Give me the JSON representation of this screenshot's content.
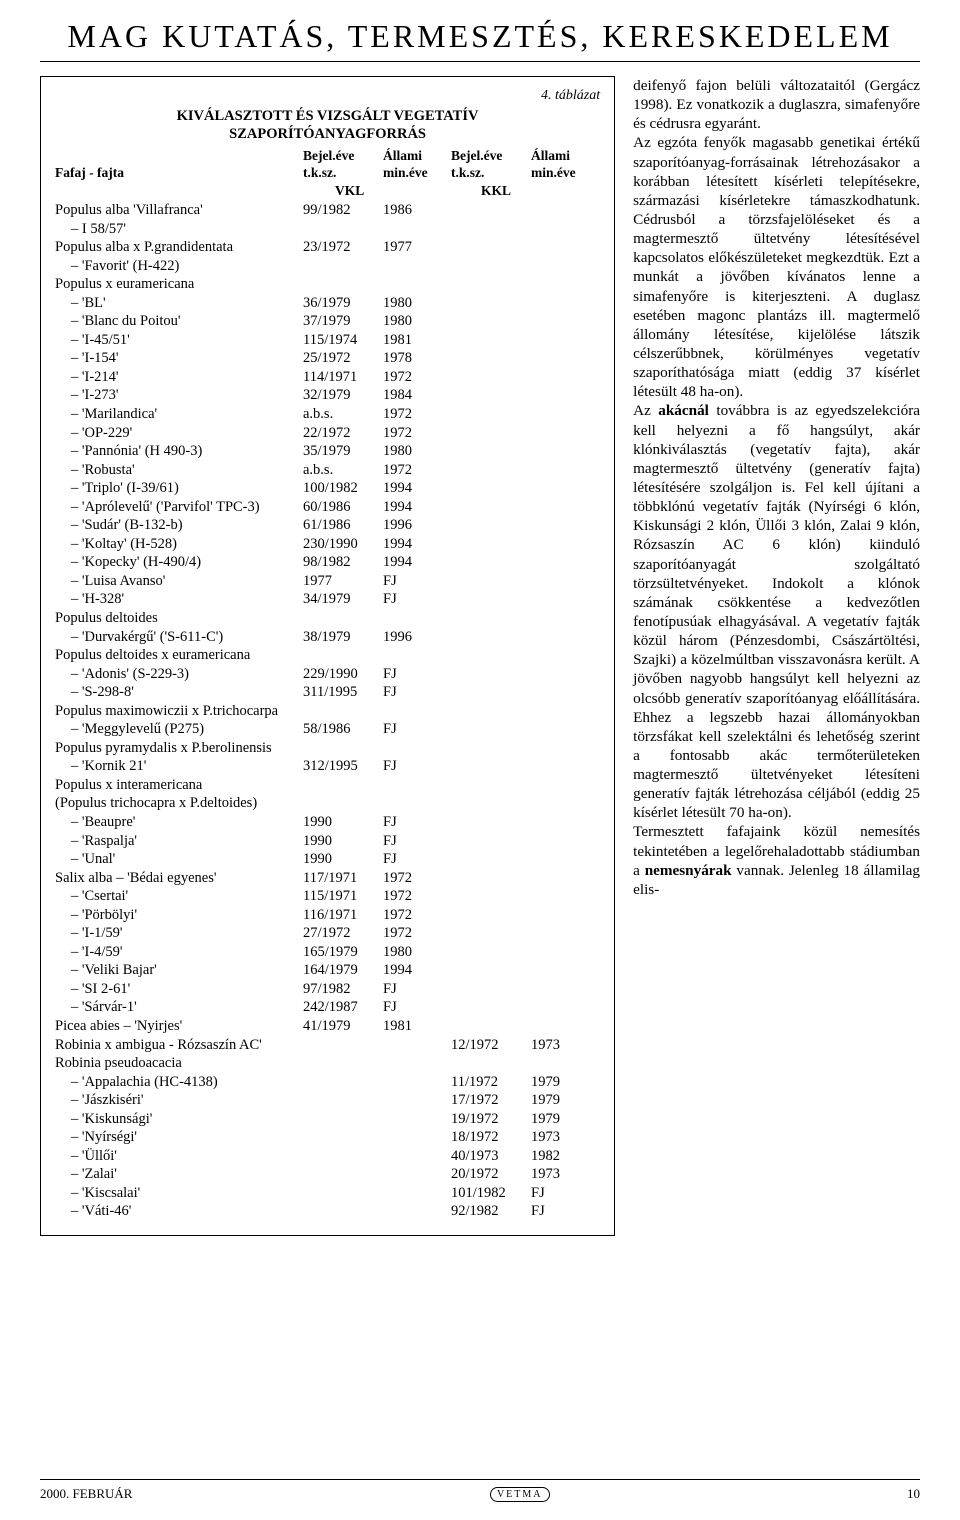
{
  "page_title": "MAG KUTATÁS, TERMESZTÉS, KERESKEDELEM",
  "table": {
    "tag": "4. táblázat",
    "title_l1": "KIVÁLASZTOTT ÉS VIZSGÁLT VEGETATÍV",
    "title_l2": "SZAPORÍTÓANYAGFORRÁS",
    "hdr_fajta": "Fafaj - fajta",
    "hdr_bejel": "Bejel.éve",
    "hdr_tksz": "t.k.sz.",
    "hdr_allami": "Állami",
    "hdr_mineve": "min.éve",
    "hdr_vkl": "VKL",
    "hdr_kkl": "KKL",
    "rows": [
      {
        "n": "Populus alba 'Villafranca'",
        "a": "99/1982",
        "b": "1986",
        "c": "",
        "d": "",
        "p": 0
      },
      {
        "n": "I 58/57'",
        "a": "",
        "b": "",
        "c": "",
        "d": "",
        "p": 1
      },
      {
        "n": "Populus alba x P.grandidentata",
        "a": "23/1972",
        "b": "1977",
        "c": "",
        "d": "",
        "p": 0
      },
      {
        "n": "'Favorit' (H-422)",
        "a": "",
        "b": "",
        "c": "",
        "d": "",
        "p": 1
      },
      {
        "n": "Populus x euramericana",
        "a": "",
        "b": "",
        "c": "",
        "d": "",
        "p": 0
      },
      {
        "n": "'BL'",
        "a": "36/1979",
        "b": "1980",
        "c": "",
        "d": "",
        "p": 1
      },
      {
        "n": "'Blanc du Poitou'",
        "a": "37/1979",
        "b": "1980",
        "c": "",
        "d": "",
        "p": 1
      },
      {
        "n": "'I-45/51'",
        "a": "115/1974",
        "b": "1981",
        "c": "",
        "d": "",
        "p": 1
      },
      {
        "n": "'I-154'",
        "a": "25/1972",
        "b": "1978",
        "c": "",
        "d": "",
        "p": 1
      },
      {
        "n": "'I-214'",
        "a": "114/1971",
        "b": "1972",
        "c": "",
        "d": "",
        "p": 1
      },
      {
        "n": "'I-273'",
        "a": "32/1979",
        "b": "1984",
        "c": "",
        "d": "",
        "p": 1
      },
      {
        "n": "'Marilandica'",
        "a": "a.b.s.",
        "b": "1972",
        "c": "",
        "d": "",
        "p": 1
      },
      {
        "n": "'OP-229'",
        "a": "22/1972",
        "b": "1972",
        "c": "",
        "d": "",
        "p": 1
      },
      {
        "n": "'Pannónia' (H 490-3)",
        "a": "35/1979",
        "b": "1980",
        "c": "",
        "d": "",
        "p": 1
      },
      {
        "n": "'Robusta'",
        "a": "a.b.s.",
        "b": "1972",
        "c": "",
        "d": "",
        "p": 1
      },
      {
        "n": "'Triplo' (I-39/61)",
        "a": "100/1982",
        "b": "1994",
        "c": "",
        "d": "",
        "p": 1
      },
      {
        "n": "'Aprólevelű' ('Parvifol' TPC-3)",
        "a": "60/1986",
        "b": "1994",
        "c": "",
        "d": "",
        "p": 1
      },
      {
        "n": "'Sudár' (B-132-b)",
        "a": "61/1986",
        "b": "1996",
        "c": "",
        "d": "",
        "p": 1
      },
      {
        "n": "'Koltay' (H-528)",
        "a": "230/1990",
        "b": "1994",
        "c": "",
        "d": "",
        "p": 1
      },
      {
        "n": "'Kopecky' (H-490/4)",
        "a": "98/1982",
        "b": "1994",
        "c": "",
        "d": "",
        "p": 1
      },
      {
        "n": "'Luisa Avanso'",
        "a": "1977",
        "b": "FJ",
        "c": "",
        "d": "",
        "p": 1
      },
      {
        "n": "'H-328'",
        "a": "34/1979",
        "b": "FJ",
        "c": "",
        "d": "",
        "p": 1
      },
      {
        "n": "Populus deltoides",
        "a": "",
        "b": "",
        "c": "",
        "d": "",
        "p": 0
      },
      {
        "n": "'Durvakérgű' ('S-611-C')",
        "a": "38/1979",
        "b": "1996",
        "c": "",
        "d": "",
        "p": 1
      },
      {
        "n": "Populus deltoides x euramericana",
        "a": "",
        "b": "",
        "c": "",
        "d": "",
        "p": 0
      },
      {
        "n": "'Adonis' (S-229-3)",
        "a": "229/1990",
        "b": "FJ",
        "c": "",
        "d": "",
        "p": 1
      },
      {
        "n": "'S-298-8'",
        "a": "311/1995",
        "b": "FJ",
        "c": "",
        "d": "",
        "p": 1
      },
      {
        "n": "Populus maximowiczii x P.trichocarpa",
        "a": "",
        "b": "",
        "c": "",
        "d": "",
        "p": 0
      },
      {
        "n": "'Meggylevelű (P275)",
        "a": "58/1986",
        "b": "FJ",
        "c": "",
        "d": "",
        "p": 1
      },
      {
        "n": "Populus pyramydalis x P.berolinensis",
        "a": "",
        "b": "",
        "c": "",
        "d": "",
        "p": 0
      },
      {
        "n": "'Kornik 21'",
        "a": "312/1995",
        "b": "FJ",
        "c": "",
        "d": "",
        "p": 1
      },
      {
        "n": "Populus x interamericana",
        "a": "",
        "b": "",
        "c": "",
        "d": "",
        "p": 0
      },
      {
        "n": "(Populus trichocapra x P.deltoides)",
        "a": "",
        "b": "",
        "c": "",
        "d": "",
        "p": 0
      },
      {
        "n": "'Beaupre'",
        "a": "1990",
        "b": "FJ",
        "c": "",
        "d": "",
        "p": 1
      },
      {
        "n": "'Raspalja'",
        "a": "1990",
        "b": "FJ",
        "c": "",
        "d": "",
        "p": 1
      },
      {
        "n": "'Unal'",
        "a": "1990",
        "b": "FJ",
        "c": "",
        "d": "",
        "p": 1
      },
      {
        "n": "Salix alba – 'Bédai egyenes'",
        "a": "117/1971",
        "b": "1972",
        "c": "",
        "d": "",
        "p": 0
      },
      {
        "n": "'Csertai'",
        "a": "115/1971",
        "b": "1972",
        "c": "",
        "d": "",
        "p": 1
      },
      {
        "n": "'Pörbölyi'",
        "a": "116/1971",
        "b": "1972",
        "c": "",
        "d": "",
        "p": 1
      },
      {
        "n": "'I-1/59'",
        "a": "27/1972",
        "b": "1972",
        "c": "",
        "d": "",
        "p": 1
      },
      {
        "n": "'I-4/59'",
        "a": "165/1979",
        "b": "1980",
        "c": "",
        "d": "",
        "p": 1
      },
      {
        "n": "'Veliki Bajar'",
        "a": "164/1979",
        "b": "1994",
        "c": "",
        "d": "",
        "p": 1
      },
      {
        "n": "'SI 2-61'",
        "a": "97/1982",
        "b": "FJ",
        "c": "",
        "d": "",
        "p": 1
      },
      {
        "n": "'Sárvár-1'",
        "a": "242/1987",
        "b": "FJ",
        "c": "",
        "d": "",
        "p": 1
      },
      {
        "n": "Picea abies – 'Nyirjes'",
        "a": "41/1979",
        "b": "1981",
        "c": "",
        "d": "",
        "p": 0
      },
      {
        "n": "Robinia x ambigua - Rózsaszín AC'",
        "a": "",
        "b": "",
        "c": "12/1972",
        "d": "1973",
        "p": 0
      },
      {
        "n": "Robinia pseudoacacia",
        "a": "",
        "b": "",
        "c": "",
        "d": "",
        "p": 0
      },
      {
        "n": "'Appalachia (HC-4138)",
        "a": "",
        "b": "",
        "c": "11/1972",
        "d": "1979",
        "p": 1
      },
      {
        "n": "'Jászkiséri'",
        "a": "",
        "b": "",
        "c": "17/1972",
        "d": "1979",
        "p": 1
      },
      {
        "n": "'Kiskunsági'",
        "a": "",
        "b": "",
        "c": "19/1972",
        "d": "1979",
        "p": 1
      },
      {
        "n": "'Nyírségi'",
        "a": "",
        "b": "",
        "c": "18/1972",
        "d": "1973",
        "p": 1
      },
      {
        "n": "'Üllői'",
        "a": "",
        "b": "",
        "c": "40/1973",
        "d": "1982",
        "p": 1
      },
      {
        "n": "'Zalai'",
        "a": "",
        "b": "",
        "c": "20/1972",
        "d": "1973",
        "p": 1
      },
      {
        "n": "'Kiscsalai'",
        "a": "",
        "b": "",
        "c": "101/1982",
        "d": "FJ",
        "p": 1
      },
      {
        "n": "'Váti-46'",
        "a": "",
        "b": "",
        "c": "92/1982",
        "d": "FJ",
        "p": 1
      }
    ]
  },
  "article": {
    "p1a": "deifenyő fajon belüli változataitól (Gergácz 1998). Ez vonatkozik a duglaszra, simafenyőre és cédrusra egyaránt.",
    "p2": "Az egzóta fenyők magasabb genetikai értékű szaporítóanyag-forrásainak létrehozásakor a korábban létesített kísérleti telepítésekre, származási kísérletekre támaszkodhatunk. Cédrusból a törzsfajelöléseket és a magtermesztő ültetvény létesítésével kapcsolatos előkészületeket megkezdtük. Ezt a munkát a jövőben kívánatos lenne a simafenyőre is kiterjeszteni. A duglasz esetében magonc plantázs ill. magtermelő állomány létesítése, kijelölése látszik célszerűbbnek, körülményes vegetatív szaporíthatósága miatt (eddig 37 kísérlet létesült 48 ha-on).",
    "p3_pre": "Az ",
    "p3_bold": "akácnál",
    "p3_post": " továbbra is az egyedszelekcióra kell helyezni a fő hangsúlyt, akár klónkiválasztás (vegetatív fajta), akár magtermesztő ültetvény (generatív fajta) létesítésére szolgáljon is. Fel kell újítani a többklónú vegetatív fajták (Nyírségi 6 klón, Kiskunsági 2 klón, Üllői 3 klón, Zalai 9 klón, Rózsaszín AC 6 klón) kiinduló szaporítóanyagát szolgáltató törzsültetvényeket. Indokolt a klónok számának csökkentése a kedvezőtlen fenotípusúak elhagyásával. A vegetatív fajták közül három (Pénzesdombi, Császártöltési, Szajki) a közelmúltban visszavonásra került. A jövőben nagyobb hangsúlyt kell helyezni az olcsóbb generatív szaporítóanyag előállítására. Ehhez a legszebb hazai állományokban törzsfákat kell szelektálni és lehetőség szerint a fontosabb akác termőterületeken magtermesztő ültetvényeket létesíteni generatív fajták létrehozása céljából (eddig 25 kísérlet létesült 70 ha-on).",
    "p4_pre": "Termesztett fafajaink közül nemesítés tekintetében a legelőrehaladottabb stádiumban a ",
    "p4_bold": "nemesnyárak",
    "p4_post": " vannak. Jelenleg 18 államilag elis-"
  },
  "footer": {
    "date": "2000. FEBRUÁR",
    "logo": "VETMA",
    "page": "10"
  }
}
